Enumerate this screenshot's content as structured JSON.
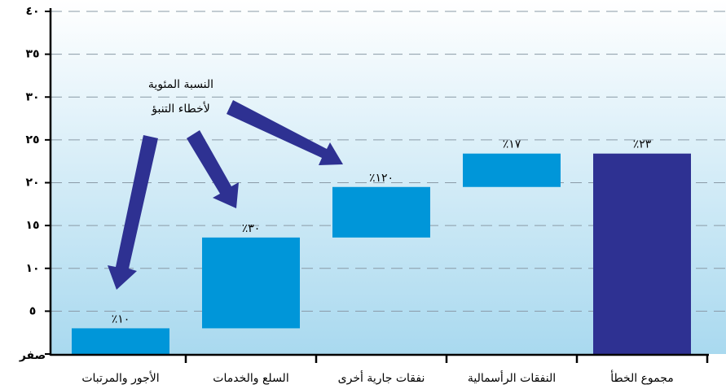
{
  "chart_data": {
    "type": "waterfall",
    "categories": [
      "الأجور والمرتبات",
      "السلع والخدمات",
      "نفقات جارية أخرى",
      "النفقات الرأسمالية",
      "مجموع الخطأ"
    ],
    "values": [
      3,
      10.6,
      5.9,
      3.9,
      23.4
    ],
    "totals": [
      false,
      false,
      false,
      false,
      true
    ],
    "colors": [
      "#0096d9",
      "#0096d9",
      "#0096d9",
      "#0096d9",
      "#2e3192"
    ],
    "percent_labels": [
      "٪١٠",
      "٪٣٠",
      "٪١٢٠",
      "٪١٧",
      "٪٢٣"
    ],
    "annotation": [
      "النسبة المئوية",
      "لأخطاء التنبؤ"
    ],
    "ylim": [
      0,
      40
    ],
    "yticks": [
      {
        "value": 0,
        "label": "صفر"
      },
      {
        "value": 5,
        "label": "٥"
      },
      {
        "value": 10,
        "label": "١٠"
      },
      {
        "value": 15,
        "label": "١٥"
      },
      {
        "value": 20,
        "label": "٢٠"
      },
      {
        "value": 25,
        "label": "٢٥"
      },
      {
        "value": 30,
        "label": "٣٠"
      },
      {
        "value": 35,
        "label": "٣٥"
      },
      {
        "value": 40,
        "label": "٤٠"
      }
    ],
    "grid": true
  }
}
